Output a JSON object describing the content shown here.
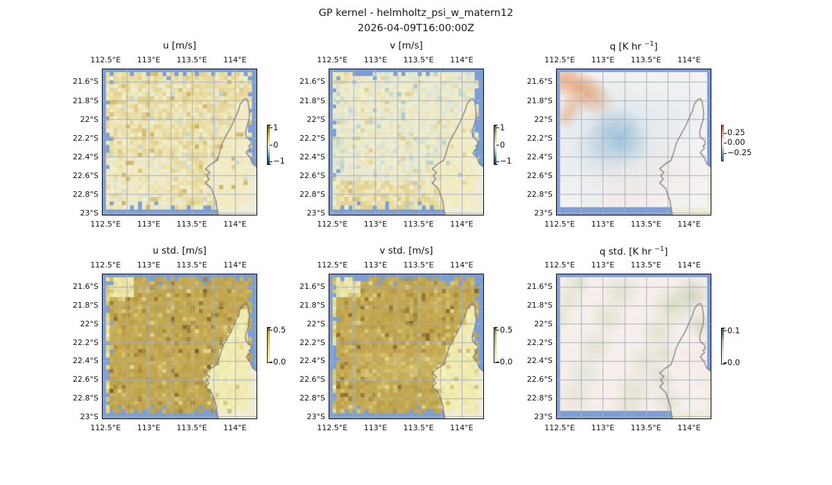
{
  "figure": {
    "suptitle_line1": "GP kernel - helmholtz_psi_w_matern12",
    "suptitle_line2": "2026-04-09T16:00:00Z",
    "background": "#ffffff"
  },
  "map": {
    "ocean_color": "#7c9ed4",
    "land_color": "#efecda",
    "grid_color": "#a8aeb9",
    "coast_color": "#7a7a7a",
    "frame_color": "#000000",
    "extent": {
      "lon": [
        112.466,
        114.25
      ],
      "lat": [
        21.467,
        23.02
      ]
    },
    "grid_lon_start": 112.5,
    "grid_lon_step": 0.25,
    "xticks": {
      "values": [
        112.5,
        113.0,
        113.5,
        114.0
      ],
      "labels": [
        "112.5°E",
        "113°E",
        "113.5°E",
        "114°E"
      ]
    },
    "yticks": {
      "values": [
        21.6,
        21.8,
        22.0,
        22.2,
        22.4,
        22.6,
        22.8,
        23.0
      ],
      "labels": [
        "21.6°S",
        "21.8°S",
        "22°S",
        "22.2°S",
        "22.4°S",
        "22.6°S",
        "22.8°S",
        "23°S"
      ]
    },
    "coastline": [
      [
        0.753,
        1.01
      ],
      [
        0.742,
        0.948
      ],
      [
        0.736,
        0.903
      ],
      [
        0.72,
        0.858
      ],
      [
        0.708,
        0.82
      ],
      [
        0.669,
        0.781
      ],
      [
        0.692,
        0.755
      ],
      [
        0.675,
        0.73
      ],
      [
        0.697,
        0.71
      ],
      [
        0.669,
        0.684
      ],
      [
        0.703,
        0.652
      ],
      [
        0.742,
        0.627
      ],
      [
        0.759,
        0.575
      ],
      [
        0.776,
        0.511
      ],
      [
        0.804,
        0.453
      ],
      [
        0.832,
        0.401
      ],
      [
        0.86,
        0.337
      ],
      [
        0.882,
        0.285
      ],
      [
        0.894,
        0.24
      ],
      [
        0.916,
        0.208
      ],
      [
        0.933,
        0.202
      ],
      [
        0.944,
        0.221
      ],
      [
        0.95,
        0.26
      ],
      [
        0.955,
        0.305
      ],
      [
        0.95,
        0.35
      ],
      [
        0.939,
        0.388
      ],
      [
        0.928,
        0.433
      ],
      [
        0.933,
        0.466
      ],
      [
        0.961,
        0.491
      ],
      [
        0.966,
        0.517
      ],
      [
        0.95,
        0.527
      ],
      [
        0.961,
        0.543
      ],
      [
        0.944,
        0.556
      ],
      [
        0.933,
        0.575
      ],
      [
        0.955,
        0.601
      ],
      [
        0.966,
        0.627
      ],
      [
        0.977,
        0.652
      ],
      [
        1.01,
        0.678
      ]
    ]
  },
  "cmaps": {
    "delta": [
      [
        0,
        "#16305a"
      ],
      [
        0.18,
        "#3c7ab2"
      ],
      [
        0.34,
        "#a9c8ca"
      ],
      [
        0.44,
        "#e0e6d4"
      ],
      [
        0.5,
        "#f3efcd"
      ],
      [
        0.56,
        "#ecdfa4"
      ],
      [
        0.66,
        "#dcc67e"
      ],
      [
        0.78,
        "#c2a452"
      ],
      [
        0.88,
        "#97832f"
      ],
      [
        1,
        "#41531f"
      ]
    ],
    "turbid": [
      [
        0,
        "#f4f2be"
      ],
      [
        0.5,
        "#ddcf7e"
      ],
      [
        0.72,
        "#ccb55c"
      ],
      [
        0.86,
        "#bd9f47"
      ],
      [
        0.94,
        "#7c5b28"
      ],
      [
        1,
        "#30200f"
      ]
    ],
    "rdbu": [
      [
        0,
        "#2a66ab"
      ],
      [
        0.28,
        "#82b2d7"
      ],
      [
        0.44,
        "#ddeaf2"
      ],
      [
        0.5,
        "#f7f6f5"
      ],
      [
        0.56,
        "#fae5d7"
      ],
      [
        0.72,
        "#f2ab7c"
      ],
      [
        1,
        "#c0392b"
      ]
    ],
    "rain": [
      [
        0,
        "#fdf7f4"
      ],
      [
        0.35,
        "#dfe3cd"
      ],
      [
        0.65,
        "#a3bda4"
      ],
      [
        0.85,
        "#567f6c"
      ],
      [
        1,
        "#27544a"
      ]
    ]
  },
  "chart_data": [
    {
      "id": "u",
      "type": "heatmap",
      "kind": "cells",
      "seed": 11,
      "title": {
        "pre": "u [m/s]",
        "sup": "",
        "post": ""
      },
      "units": "m/s",
      "value_range": [
        -1.2,
        1.2
      ],
      "cmap": "delta",
      "field": {
        "base": 0.13,
        "sd": 0.11,
        "land_base": 0.03,
        "land_sd": 0.02,
        "regions": [
          {
            "x0": 0,
            "x1": 0.45,
            "y0": 0.6,
            "y1": 1,
            "base": 0.02,
            "sd": 0.09
          },
          {
            "x0": 0,
            "x1": 1,
            "y0": 0,
            "y1": 0.1,
            "base": 0.16,
            "sd": 0.1
          },
          {
            "x0": 0.9,
            "x1": 1,
            "y0": 0.2,
            "y1": 0.62,
            "base": 0.05,
            "sd": 0.04
          }
        ],
        "outliers": [
          {
            "p": 0.05,
            "lo": 0.32,
            "hi": 0.55
          },
          {
            "p": 0.03,
            "lo": -0.3,
            "hi": -0.12
          }
        ]
      },
      "description": "speckled GP posterior mean of zonal velocity; mostly pale yellow ~+0.1 m/s, scattered tan +0.4 and pale-blue -0.2 cells, gray-green patch in SW",
      "colorbar": {
        "cmap": "delta",
        "caps": true,
        "range": [
          -1.2,
          1.2
        ],
        "ticks": [
          {
            "f": 0.07,
            "label": "1"
          },
          {
            "f": 0.5,
            "label": "0"
          },
          {
            "f": 0.91,
            "label": "−1"
          }
        ]
      }
    },
    {
      "id": "v",
      "type": "heatmap",
      "kind": "cells",
      "seed": 22,
      "title": {
        "pre": "v [m/s]",
        "sup": "",
        "post": ""
      },
      "units": "m/s",
      "value_range": [
        -1.2,
        1.2
      ],
      "cmap": "delta",
      "field": {
        "base": -0.04,
        "sd": 0.09,
        "land_base": 0.03,
        "land_sd": 0.02,
        "regions": [
          {
            "x0": 0.05,
            "x1": 0.75,
            "y0": 0.78,
            "y1": 1,
            "base": 0.16,
            "sd": 0.14
          },
          {
            "x0": 0,
            "x1": 0.18,
            "y0": 0,
            "y1": 0.1,
            "base": 0.12,
            "sd": 0.06
          },
          {
            "x0": 0,
            "x1": 0.1,
            "y0": 0.1,
            "y1": 0.7,
            "base": -0.12,
            "sd": 0.12
          },
          {
            "x0": 0.9,
            "x1": 1,
            "y0": 0.2,
            "y1": 0.62,
            "base": 0.04,
            "sd": 0.04
          }
        ],
        "outliers": [
          {
            "p": 0.04,
            "lo": -0.38,
            "hi": -0.2
          },
          {
            "p": 0.04,
            "lo": 0.18,
            "hi": 0.32
          }
        ]
      },
      "description": "speckled GP posterior mean of meridional velocity; pale blue-green ~-0.05 m/s with teal and tan speckles, yellow-tan band along south edge",
      "colorbar": {
        "cmap": "delta",
        "caps": true,
        "range": [
          -1.2,
          1.2
        ],
        "ticks": [
          {
            "f": 0.07,
            "label": "1"
          },
          {
            "f": 0.5,
            "label": "0"
          },
          {
            "f": 0.91,
            "label": "−1"
          }
        ]
      }
    },
    {
      "id": "q",
      "type": "heatmap",
      "kind": "smooth",
      "seed": 33,
      "title": {
        "pre": "q [K hr ",
        "sup": "−1",
        "post": "]"
      },
      "units": "K/hr",
      "value_range": [
        -0.45,
        0.45
      ],
      "cmap": "rdbu",
      "field": {
        "base": "#f4f4f2",
        "mottle": [
          "#eef2f4",
          "#f8ece4",
          "#f2f4f0"
        ],
        "mottle_alpha": 0.14,
        "blobs": [
          {
            "cx": 0.05,
            "cy": 0.07,
            "r": 0.07,
            "color": "#efa273",
            "a": 0.75
          },
          {
            "cx": 0.13,
            "cy": 0.12,
            "r": 0.08,
            "color": "#efa273",
            "a": 0.85
          },
          {
            "cx": 0.21,
            "cy": 0.17,
            "r": 0.08,
            "color": "#eb9a68",
            "a": 0.9
          },
          {
            "cx": 0.28,
            "cy": 0.23,
            "r": 0.07,
            "color": "#f0ab7e",
            "a": 0.55
          },
          {
            "cx": 0.1,
            "cy": 0.26,
            "r": 0.055,
            "color": "#efa273",
            "a": 0.7
          },
          {
            "cx": 0.06,
            "cy": 0.33,
            "r": 0.05,
            "color": "#efa273",
            "a": 0.6
          },
          {
            "cx": 0.38,
            "cy": 0.5,
            "r": 0.3,
            "color": "#c6d9e6",
            "a": 0.7
          },
          {
            "cx": 0.4,
            "cy": 0.47,
            "r": 0.13,
            "color": "#8fb9d9",
            "a": 0.85
          },
          {
            "cx": 0.3,
            "cy": 0.55,
            "r": 0.12,
            "color": "#b4cede",
            "a": 0.6
          },
          {
            "cx": 0.78,
            "cy": 0.3,
            "r": 0.18,
            "color": "#e2ebf1",
            "a": 0.6
          },
          {
            "cx": 0.45,
            "cy": 0.88,
            "r": 0.2,
            "color": "#f6e7e4",
            "a": 0.7
          },
          {
            "cx": 0.75,
            "cy": 0.72,
            "r": 0.15,
            "color": "#f5e6e2",
            "a": 0.5
          },
          {
            "cx": 0.2,
            "cy": 0.75,
            "r": 0.18,
            "color": "#eef0f2",
            "a": 0.4
          }
        ]
      },
      "description": "smooth GP heating-rate field: warm orange diagonal streak in NW, blue negative blob near 113°E 22.1°S, faint pink patches south",
      "colorbar": {
        "cmap": "rdbu",
        "caps": false,
        "range": [
          -0.45,
          0.45
        ],
        "ticks": [
          {
            "f": 0.226,
            "label": "0.25"
          },
          {
            "f": 0.49,
            "label": "0.00"
          },
          {
            "f": 0.77,
            "label": "−0.25"
          }
        ]
      }
    },
    {
      "id": "ustd",
      "type": "heatmap",
      "kind": "cells",
      "seed": 44,
      "title": {
        "pre": "u std. [m/s]",
        "sup": "",
        "post": ""
      },
      "units": "m/s",
      "value_range": [
        0,
        0.52
      ],
      "cmap": "turbid",
      "field": {
        "base": 0.42,
        "sd": 0.03,
        "land_base": 0.05,
        "land_sd": 0.03,
        "regions": [
          {
            "x0": 0,
            "x1": 0.2,
            "y0": 0,
            "y1": 0.16,
            "base": 0.1,
            "sd": 0.05
          },
          {
            "x0": 0,
            "x1": 0.045,
            "y0": 0,
            "y1": 1,
            "base": 0.2,
            "sd": 0.12
          },
          {
            "x0": 0,
            "x1": 1,
            "y0": 0.96,
            "y1": 1,
            "base": 0.3,
            "sd": 0.12
          }
        ],
        "outliers": [
          {
            "p": 0.05,
            "lo": 0.28,
            "hi": 0.34
          },
          {
            "p": 0.02,
            "lo": 0.2,
            "hi": 0.26
          }
        ]
      },
      "description": "posterior std of u: uniformly high ~0.42 m/s (dark tan) over ocean, near zero over land and in NW corner patch",
      "colorbar": {
        "cmap": "turbid",
        "caps": true,
        "range": [
          0,
          0.52
        ],
        "ticks": [
          {
            "f": 0.08,
            "label": "0.5"
          },
          {
            "f": 0.97,
            "label": "0.0"
          }
        ]
      }
    },
    {
      "id": "vstd",
      "type": "heatmap",
      "kind": "cells",
      "seed": 55,
      "title": {
        "pre": "v std. [m/s]",
        "sup": "",
        "post": ""
      },
      "units": "m/s",
      "value_range": [
        0,
        0.52
      ],
      "cmap": "turbid",
      "field": {
        "base": 0.42,
        "sd": 0.03,
        "land_base": 0.05,
        "land_sd": 0.03,
        "regions": [
          {
            "x0": 0,
            "x1": 0.2,
            "y0": 0,
            "y1": 0.16,
            "base": 0.1,
            "sd": 0.05
          },
          {
            "x0": 0,
            "x1": 0.045,
            "y0": 0,
            "y1": 1,
            "base": 0.2,
            "sd": 0.12
          },
          {
            "x0": 0,
            "x1": 1,
            "y0": 0.96,
            "y1": 1,
            "base": 0.3,
            "sd": 0.12
          },
          {
            "x0": 0.15,
            "x1": 0.75,
            "y0": 0.55,
            "y1": 0.75,
            "base": 0.38,
            "sd": 0.04
          }
        ],
        "outliers": [
          {
            "p": 0.05,
            "lo": 0.28,
            "hi": 0.34
          },
          {
            "p": 0.02,
            "lo": 0.2,
            "hi": 0.26
          }
        ]
      },
      "description": "posterior std of v: uniformly high ~0.42 m/s (dark tan) over ocean, near zero over land and in NW corner patch",
      "colorbar": {
        "cmap": "turbid",
        "caps": true,
        "range": [
          0,
          0.52
        ],
        "ticks": [
          {
            "f": 0.08,
            "label": "0.5"
          },
          {
            "f": 0.97,
            "label": "0.0"
          }
        ]
      }
    },
    {
      "id": "qstd",
      "type": "heatmap",
      "kind": "smooth",
      "seed": 66,
      "title": {
        "pre": "q std. [K hr ",
        "sup": "−1",
        "post": "]"
      },
      "units": "K/hr",
      "value_range": [
        0,
        0.105
      ],
      "cmap": "rain",
      "field": {
        "base": "#f7efec",
        "mottle": [
          "#e7ead8",
          "#f6ece9",
          "#eef0e2"
        ],
        "mottle_alpha": 0.18,
        "blobs": [
          {
            "cx": 0.14,
            "cy": 0.06,
            "r": 0.06,
            "color": "#d9dfc6",
            "a": 0.8
          },
          {
            "cx": 0.08,
            "cy": 0.18,
            "r": 0.06,
            "color": "#d9dfc6",
            "a": 0.7
          },
          {
            "cx": 0.03,
            "cy": 0.3,
            "r": 0.05,
            "color": "#d9dfc6",
            "a": 0.6
          },
          {
            "cx": 0.42,
            "cy": 0.12,
            "r": 0.08,
            "color": "#d6dcc3",
            "a": 0.7
          },
          {
            "cx": 0.33,
            "cy": 0.3,
            "r": 0.08,
            "color": "#d6dcc3",
            "a": 0.65
          },
          {
            "cx": 0.25,
            "cy": 0.5,
            "r": 0.08,
            "color": "#d6dcc3",
            "a": 0.6
          },
          {
            "cx": 0.18,
            "cy": 0.68,
            "r": 0.08,
            "color": "#d6dcc3",
            "a": 0.55
          },
          {
            "cx": 0.12,
            "cy": 0.85,
            "r": 0.08,
            "color": "#d6dcc3",
            "a": 0.55
          },
          {
            "cx": 0.75,
            "cy": 0.22,
            "r": 0.09,
            "color": "#ccd5b8",
            "a": 0.7
          },
          {
            "cx": 0.66,
            "cy": 0.4,
            "r": 0.08,
            "color": "#d2dabd",
            "a": 0.6
          },
          {
            "cx": 0.58,
            "cy": 0.6,
            "r": 0.08,
            "color": "#d2dabd",
            "a": 0.55
          },
          {
            "cx": 0.5,
            "cy": 0.8,
            "r": 0.09,
            "color": "#d2dabd",
            "a": 0.55
          },
          {
            "cx": 0.45,
            "cy": 0.95,
            "r": 0.08,
            "color": "#d2dabd",
            "a": 0.5
          },
          {
            "cx": 0.88,
            "cy": 0.14,
            "r": 0.08,
            "color": "#c5cfb0",
            "a": 0.8
          },
          {
            "cx": 0.93,
            "cy": 0.35,
            "r": 0.06,
            "color": "#c5cfb0",
            "a": 0.6
          },
          {
            "cx": 0.7,
            "cy": 0.55,
            "r": 0.05,
            "color": "#cdd5ba",
            "a": 0.6
          },
          {
            "cx": 0.68,
            "cy": 0.72,
            "r": 0.06,
            "color": "#cdd5ba",
            "a": 0.6
          },
          {
            "cx": 0.72,
            "cy": 0.88,
            "r": 0.07,
            "color": "#cdd5ba",
            "a": 0.5
          },
          {
            "cx": 0.95,
            "cy": 0.6,
            "r": 0.12,
            "color": "#f8e8e8",
            "a": 0.6
          },
          {
            "cx": 0.05,
            "cy": 0.95,
            "r": 0.1,
            "color": "#f6eae8",
            "a": 0.5
          }
        ]
      },
      "description": "posterior std of q: near-zero pinkish white with faint pale-green diagonal bands and slightly higher values along the coast",
      "colorbar": {
        "cmap": "rain",
        "caps": true,
        "range": [
          0,
          0.105
        ],
        "ticks": [
          {
            "f": 0.08,
            "label": "0.1"
          },
          {
            "f": 0.95,
            "label": "0.0"
          }
        ]
      }
    }
  ]
}
